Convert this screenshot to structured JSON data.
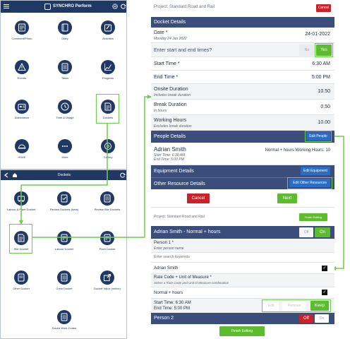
{
  "phone1": {
    "app_title": "SYNCHRO Perform",
    "tiles": [
      {
        "label": "Comment/Photo",
        "icon": "comment-photo-icon"
      },
      {
        "label": "Diary",
        "icon": "diary-icon"
      },
      {
        "label": "Activities",
        "icon": "activities-icon"
      },
      {
        "label": "Events",
        "icon": "warning-icon"
      },
      {
        "label": "Tasks",
        "icon": "tasks-icon"
      },
      {
        "label": "Progress",
        "icon": "progress-icon"
      },
      {
        "label": "Attendance",
        "icon": "attendance-icon"
      },
      {
        "label": "Time & Usage",
        "icon": "clock-icon"
      },
      {
        "label": "Dockets",
        "icon": "docket-icon"
      },
      {
        "label": "HS&E",
        "icon": "hardhat-icon"
      },
      {
        "label": "More",
        "icon": "more-icon"
      },
      {
        "label": "Gallery",
        "icon": "gallery-icon"
      }
    ]
  },
  "phone2": {
    "title": "Dockets",
    "tiles": [
      {
        "label": "Labour & Plant Docket",
        "icon": "labour-plant-icon"
      },
      {
        "label": "Review Dockets (beta)",
        "icon": "review-icon"
      },
      {
        "label": "Review Site Dockets",
        "icon": "review-site-icon"
      },
      {
        "label": "Site Docket",
        "icon": "site-docket-icon"
      },
      {
        "label": "Labour Docket",
        "icon": "labour-icon"
      },
      {
        "label": "Plant Docket",
        "icon": "plant-icon"
      },
      {
        "label": "Other Docket",
        "icon": "other-docket-icon"
      },
      {
        "label": "Crew Docket",
        "icon": "crew-docket-icon"
      },
      {
        "label": "Docket Inbox (online)",
        "icon": "inbox-icon"
      },
      {
        "label": "Saved Work Codes",
        "icon": "work-codes-icon"
      }
    ]
  },
  "right": {
    "project_label": "Project: Standard Road and Rail",
    "cancel_label": "Cancel",
    "docket_details_header": "Docket Details",
    "date_label": "Date *",
    "date_sub": "Monday 24 Jan 2022",
    "date_value": "24-01-2022",
    "enter_times_label": "Enter start and end times?",
    "no_label": "No",
    "yes_label": "Yes",
    "start_time_label": "Start Time *",
    "start_time_value": "6:30 AM",
    "end_time_label": "End Time *",
    "end_time_value": "5:00 PM",
    "onsite_label": "Onsite Duration",
    "onsite_sub": "Includes break duration",
    "onsite_value": "10.50",
    "break_label": "Break Duration",
    "break_sub": "In hours",
    "break_value": "0.50",
    "working_label": "Working Hours",
    "working_sub": "Excludes break duration",
    "working_value": "10.00",
    "people_header": "People Details",
    "edit_people_label": "Edit People",
    "person_name": "Adrian Smith",
    "person_start": "Start Time: 6:30 AM",
    "person_end": "End Time: 5:00 PM",
    "person_summary": "Normal + hours Working Hours: 10",
    "equipment_header": "Equipment Details",
    "edit_equipment_label": "Edit Equipment",
    "other_header": "Other Resource Details",
    "edit_other_label": "Edit Other Resources",
    "cancel2_label": "Cancel",
    "next_label": "Next",
    "project_label2": "Project: Standard Road and Rail",
    "finish_editing_small": "Finish Editing",
    "person_edit_header": "Adrian Smith - Normal + hours",
    "off_label": "Off",
    "on_label": "On",
    "person1_label": "Person 1 *",
    "person1_sub": "Enter person name",
    "search_placeholder": "Enter search keywords",
    "person_option": "Adrian Smith",
    "rate_label": "Rate Code + Unit of Measure *",
    "rate_sub": "Select a Rate Code and Unit of Measure combination",
    "rate_option": "Normal + hours",
    "time_line1": "Start Time: 6:30 AM",
    "time_line2": "End Time: 5:00 PM",
    "edit_label": "Edit",
    "remove_label": "Remove",
    "keep_label": "Keep",
    "person2_label": "Person 2",
    "person2_off": "Off",
    "person2_on": "On",
    "finish_editing_label": "Finish Editing"
  }
}
